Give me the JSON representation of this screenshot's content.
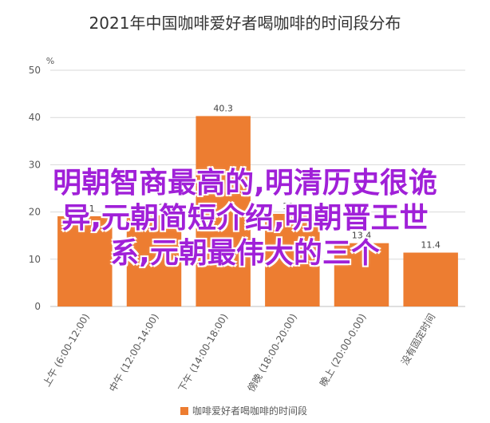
{
  "chart_data": {
    "type": "bar",
    "title": "2021年中国咖啡爱好者喝咖啡的时间段分布",
    "unit_label": "%",
    "categories": [
      "上午 (6:00-12:00)",
      "中午 (12:00-14:00)",
      "下午 (14:00-18:00)",
      "傍晚 (18:00-20:00)",
      "晚上 (20:00-0:00)",
      "没有固定时间"
    ],
    "series": [
      {
        "name": "咖啡爱好者喝咖啡的时间段",
        "values": [
          19.1,
          19.3,
          40.3,
          19.6,
          13.4,
          11.4
        ]
      }
    ],
    "value_labels": [
      "19.1",
      "19.3",
      "40.3",
      "19.6",
      "13.4",
      "11.4"
    ],
    "ylim": [
      0,
      50
    ],
    "yticks": [
      0,
      10,
      20,
      30,
      40,
      50
    ],
    "legend_position": "bottom",
    "grid": true,
    "colors": {
      "bar": "#ED7D31",
      "grid": "#D9D9D9",
      "axis": "#BFBFBF"
    }
  },
  "overlay": {
    "lines": [
      "明朝智商最高的,明清历史很诡",
      "异,元朝简短介绍,明朝晋王世",
      "系,元朝最伟大的三个"
    ],
    "color": "#a020d8"
  }
}
